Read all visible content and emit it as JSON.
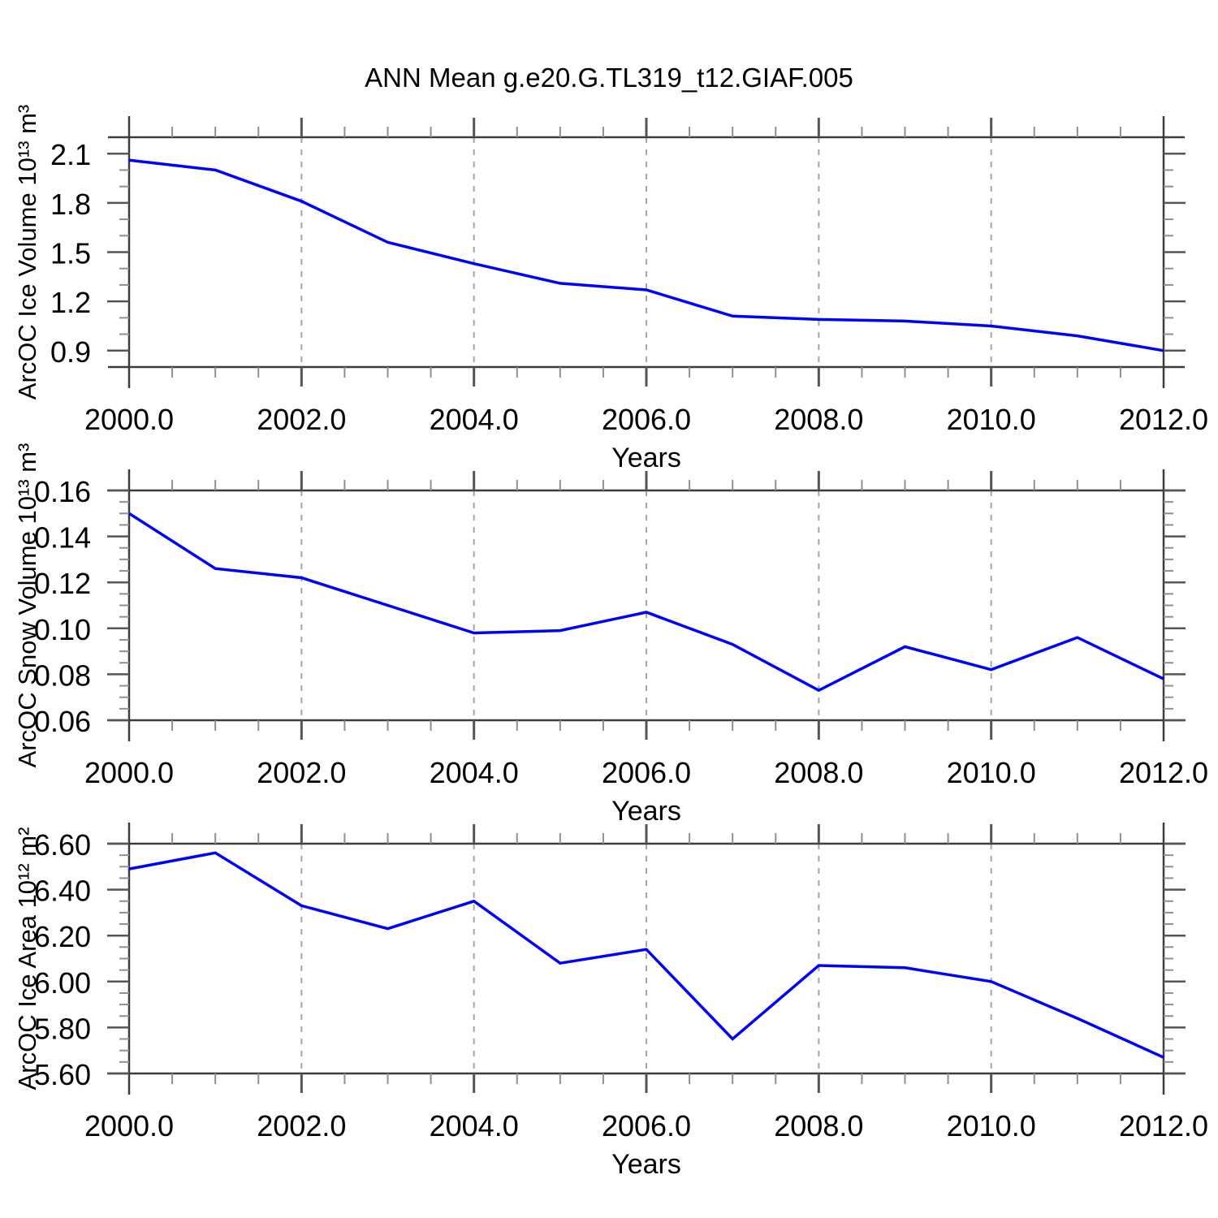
{
  "title": "ANN Mean g.e20.G.TL319_t12.GIAF.005",
  "colors": {
    "line": "#0000ff",
    "frame": "#3c3c3c",
    "major_tick": "#555555",
    "minor_tick": "#8f8f8f",
    "grid": "#a6a6a6",
    "text": "#000000",
    "background": "#ffffff"
  },
  "x_axis": {
    "label": "Years",
    "min": 2000,
    "max": 2012,
    "major_tick_values": [
      2000,
      2002,
      2004,
      2006,
      2008,
      2010,
      2012
    ],
    "tick_labels": [
      "2000.0",
      "2002.0",
      "2004.0",
      "2006.0",
      "2008.0",
      "2010.0",
      "2012.0"
    ],
    "minor_step": 0.5,
    "grid_values": [
      2002,
      2004,
      2006,
      2008,
      2010
    ]
  },
  "chart_data": [
    {
      "type": "line",
      "name": "ice-volume",
      "ylabel": "ArcOC Ice Volume 10¹³ m³",
      "xlabel": "Years",
      "ylim": [
        0.8,
        2.2
      ],
      "ytick_values": [
        2.1,
        1.8,
        1.5,
        1.2,
        0.9
      ],
      "ytick_labels": [
        "2.1",
        "1.8",
        "1.5",
        "1.2",
        "0.9"
      ],
      "yminor_step": 0.1,
      "grid": "vertical-dashed",
      "legend": "none",
      "x": [
        2000,
        2001,
        2002,
        2003,
        2004,
        2005,
        2006,
        2007,
        2008,
        2009,
        2010,
        2011,
        2012
      ],
      "values": [
        2.06,
        2.0,
        1.81,
        1.56,
        1.43,
        1.31,
        1.27,
        1.11,
        1.09,
        1.08,
        1.05,
        0.99,
        0.9
      ]
    },
    {
      "type": "line",
      "name": "snow-volume",
      "ylabel": "ArcOC Snow Volume 10¹³ m³",
      "xlabel": "Years",
      "ylim": [
        0.06,
        0.16
      ],
      "ytick_values": [
        0.16,
        0.14,
        0.12,
        0.1,
        0.08,
        0.06
      ],
      "ytick_labels": [
        "0.16",
        "0.14",
        "0.12",
        "0.10",
        "0.08",
        "0.06"
      ],
      "yminor_step": 0.005,
      "grid": "vertical-dashed",
      "legend": "none",
      "x": [
        2000,
        2001,
        2002,
        2003,
        2004,
        2005,
        2006,
        2007,
        2008,
        2009,
        2010,
        2011,
        2012
      ],
      "values": [
        0.15,
        0.126,
        0.122,
        0.11,
        0.098,
        0.099,
        0.107,
        0.093,
        0.073,
        0.092,
        0.082,
        0.096,
        0.078
      ]
    },
    {
      "type": "line",
      "name": "ice-area",
      "ylabel": "ArcOC Ice Area 10¹² m²",
      "xlabel": "Years",
      "ylim": [
        5.6,
        6.6
      ],
      "ytick_values": [
        6.6,
        6.4,
        6.2,
        6.0,
        5.8,
        5.6
      ],
      "ytick_labels": [
        "6.60",
        "6.40",
        "6.20",
        "6.00",
        "5.80",
        "5.60"
      ],
      "yminor_step": 0.05,
      "grid": "vertical-dashed",
      "legend": "none",
      "x": [
        2000,
        2001,
        2002,
        2003,
        2004,
        2005,
        2006,
        2007,
        2008,
        2009,
        2010,
        2011,
        2012
      ],
      "values": [
        6.49,
        6.56,
        6.33,
        6.23,
        6.35,
        6.08,
        6.14,
        5.75,
        6.07,
        6.06,
        6.0,
        5.84,
        5.67
      ]
    }
  ]
}
